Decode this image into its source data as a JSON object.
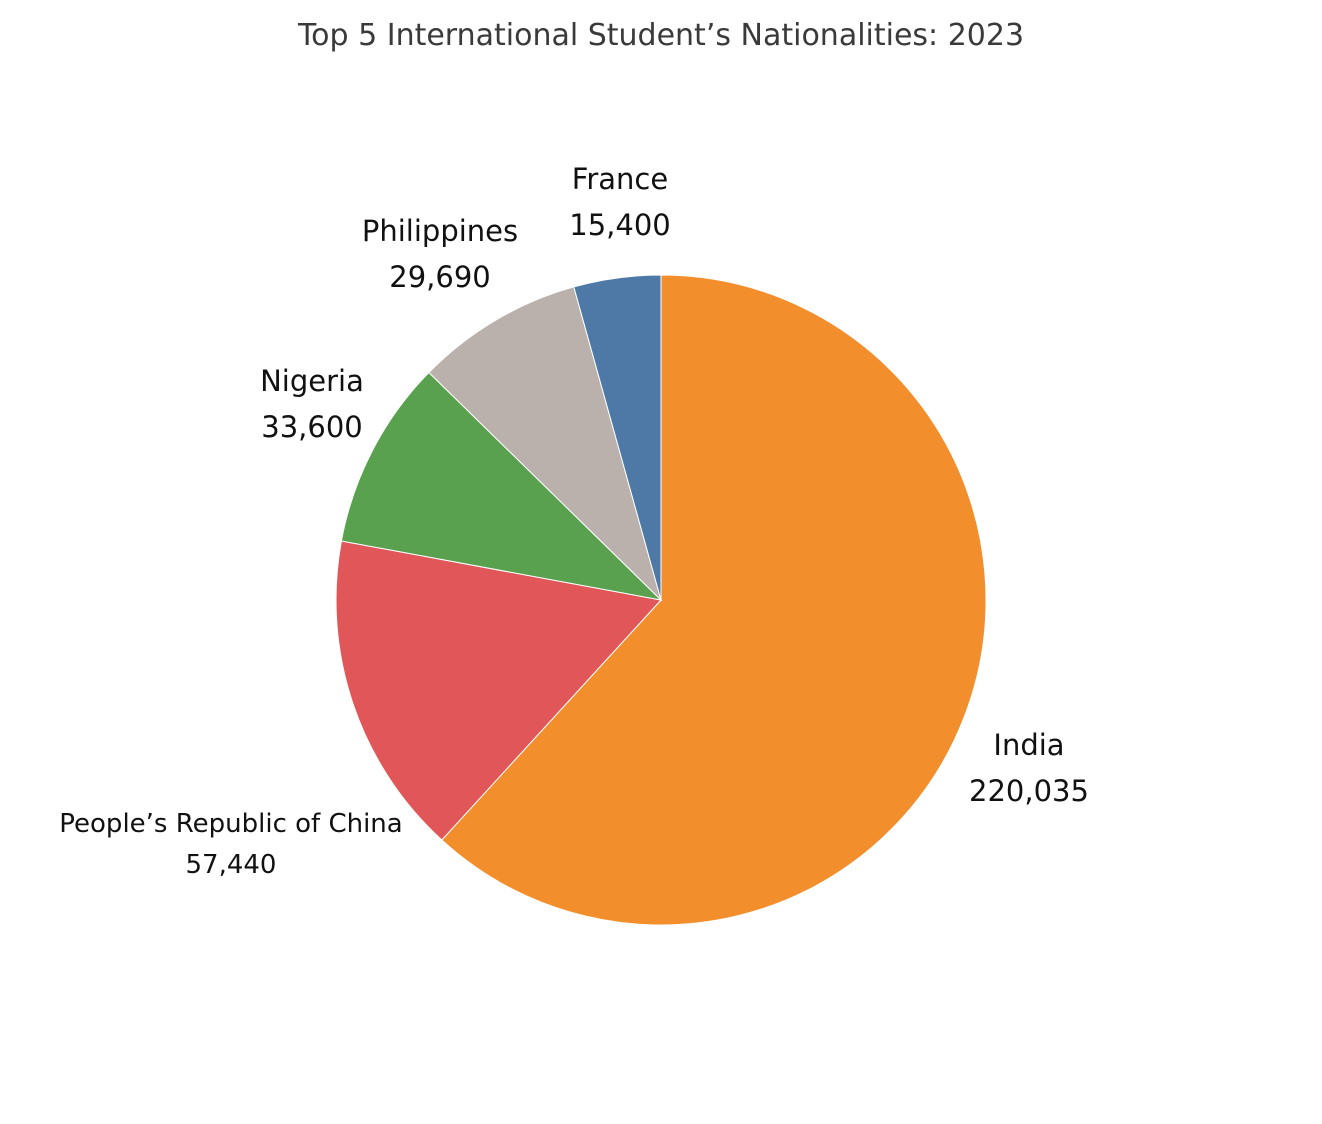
{
  "chart_data": {
    "type": "pie",
    "title": "Top 5 International Student’s Nationalities: 2023",
    "slices": [
      {
        "label": "India",
        "value": 220035,
        "value_text": "220,035",
        "color": "#F28E2B"
      },
      {
        "label": "People’s Republic of China",
        "value": 57440,
        "value_text": "57,440",
        "color": "#E15759"
      },
      {
        "label": "Nigeria",
        "value": 33600,
        "value_text": "33,600",
        "color": "#59A14F"
      },
      {
        "label": "Philippines",
        "value": 29690,
        "value_text": "29,690",
        "color": "#BAB0AC"
      },
      {
        "label": "France",
        "value": 15400,
        "value_text": "15,400",
        "color": "#4E79A7"
      }
    ],
    "start_angle": "12 o'clock",
    "direction": "clockwise",
    "legend": "none"
  }
}
